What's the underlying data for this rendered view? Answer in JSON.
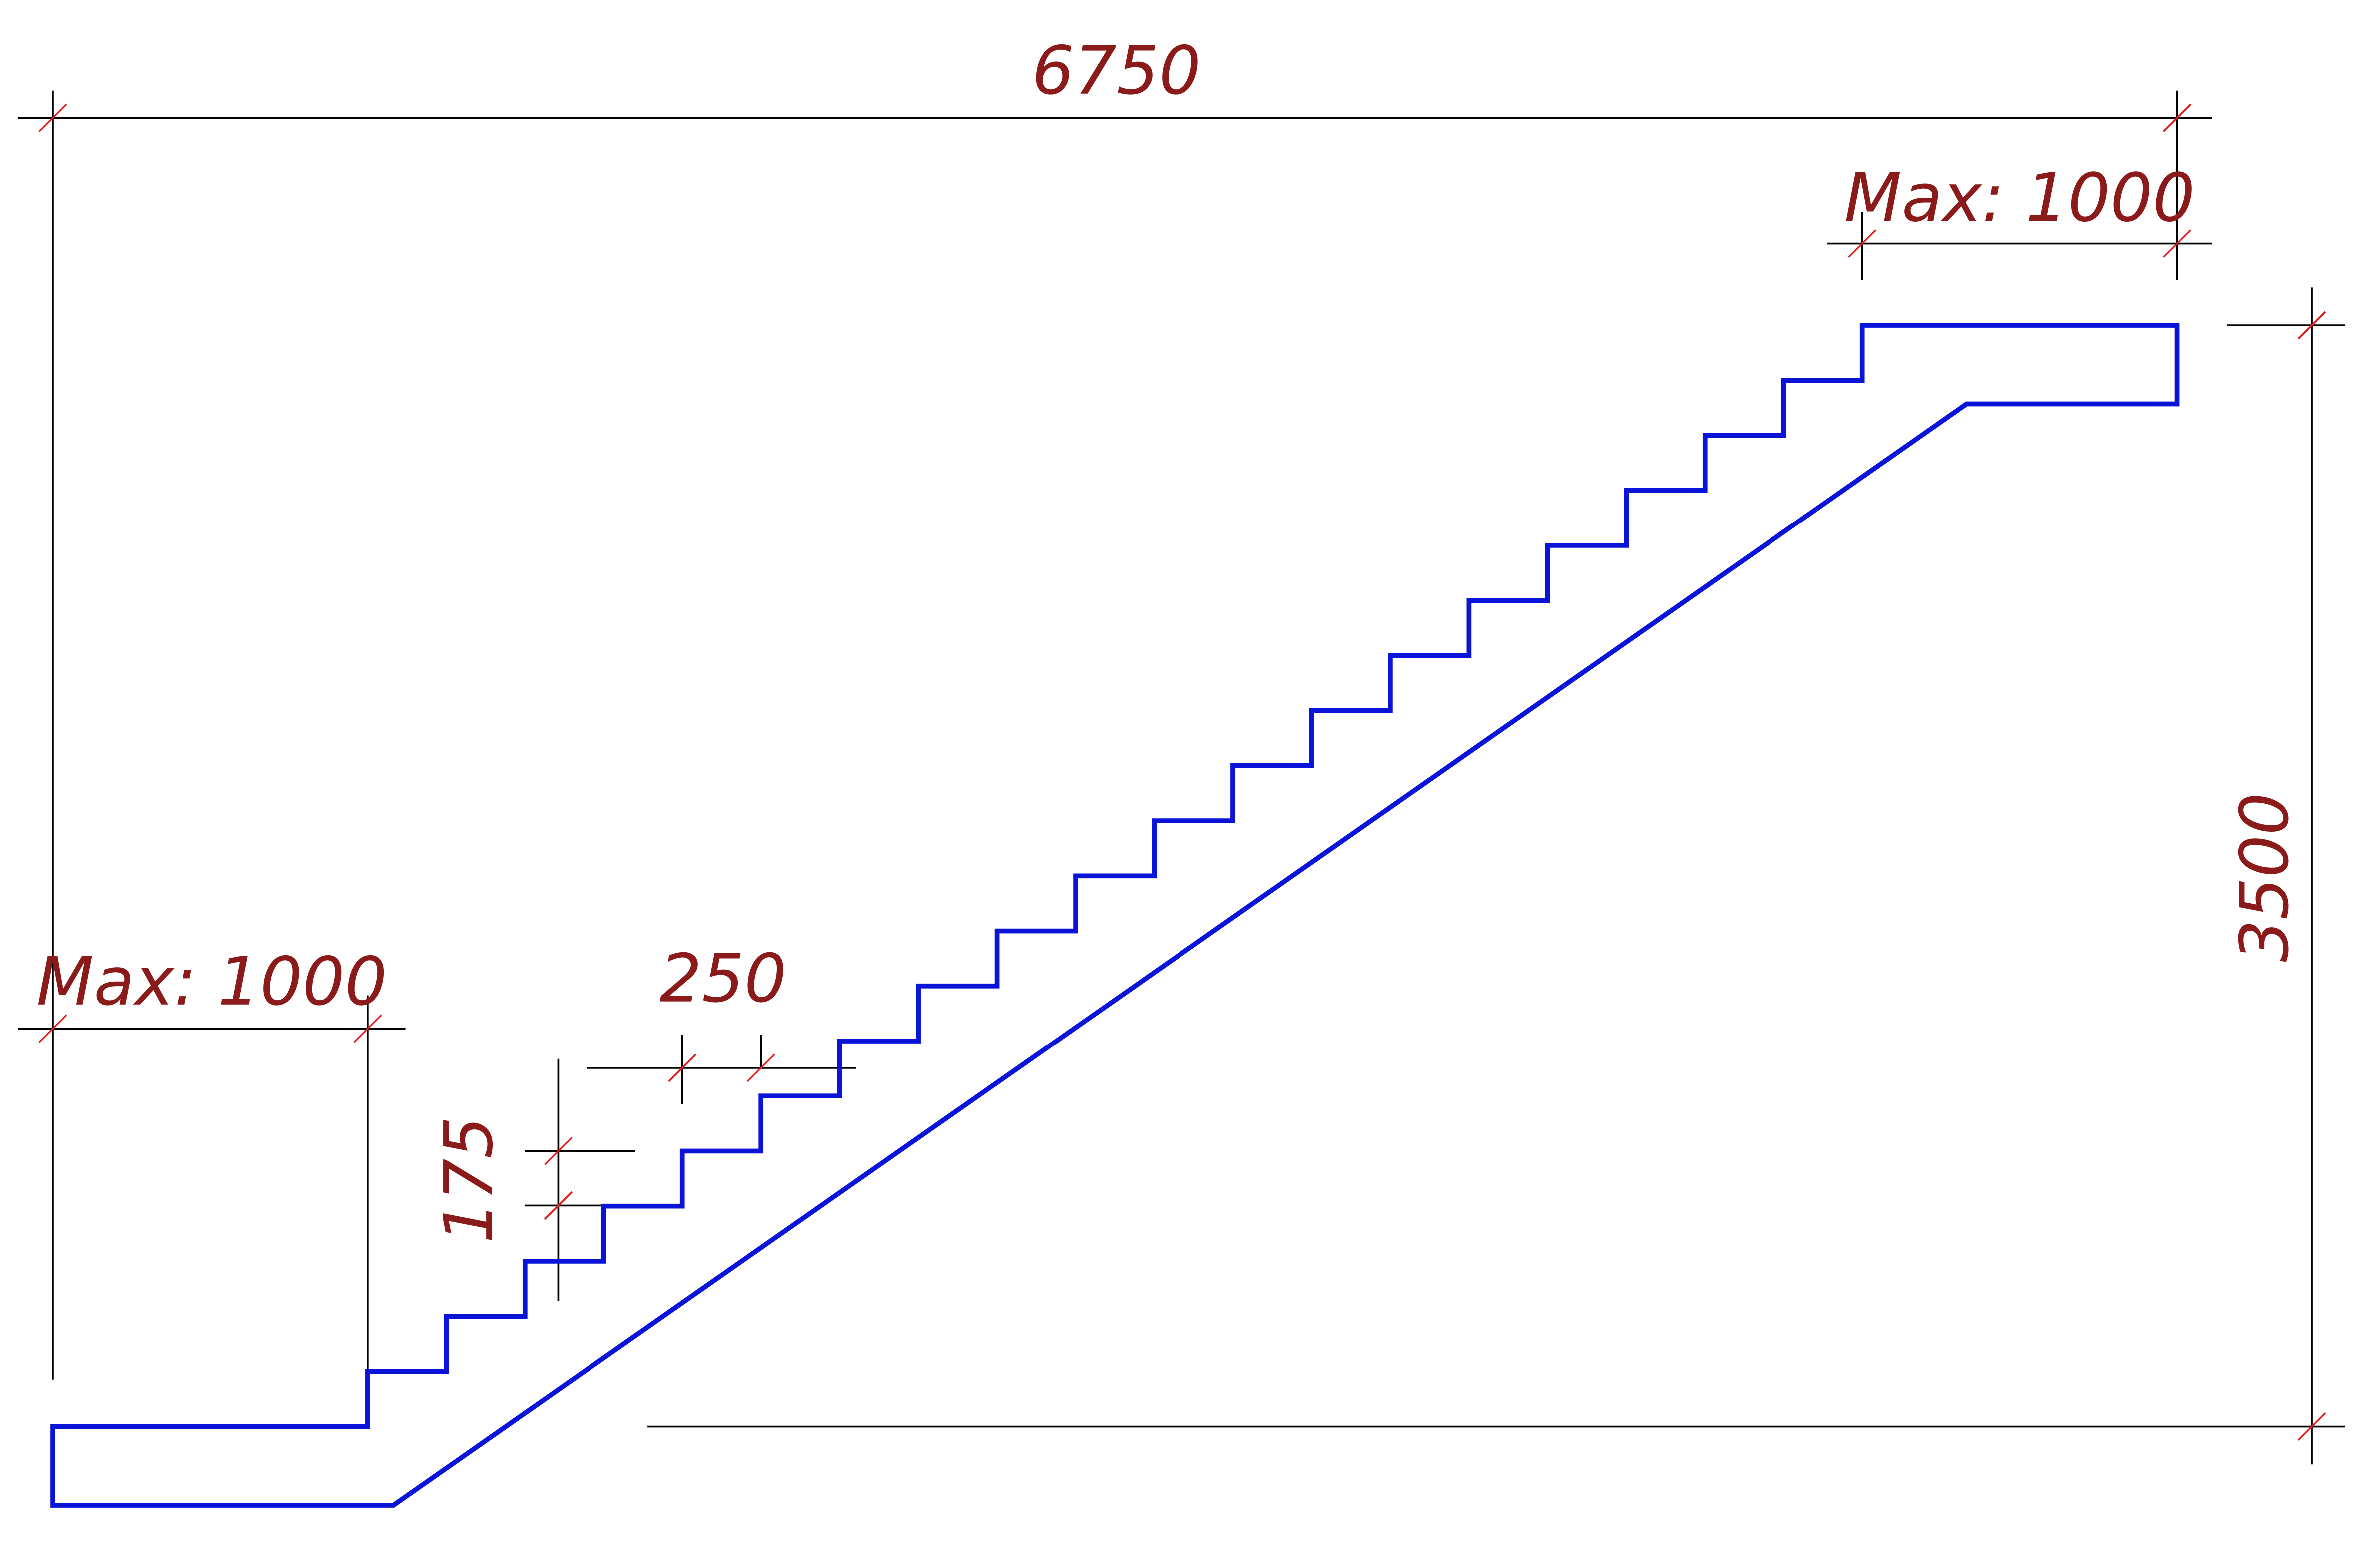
{
  "dimensions": {
    "overall_length": "6750",
    "top_landing": "Max: 1000",
    "overall_height": "3500",
    "bottom_landing": "Max: 1000",
    "tread": "250",
    "riser": "175"
  }
}
